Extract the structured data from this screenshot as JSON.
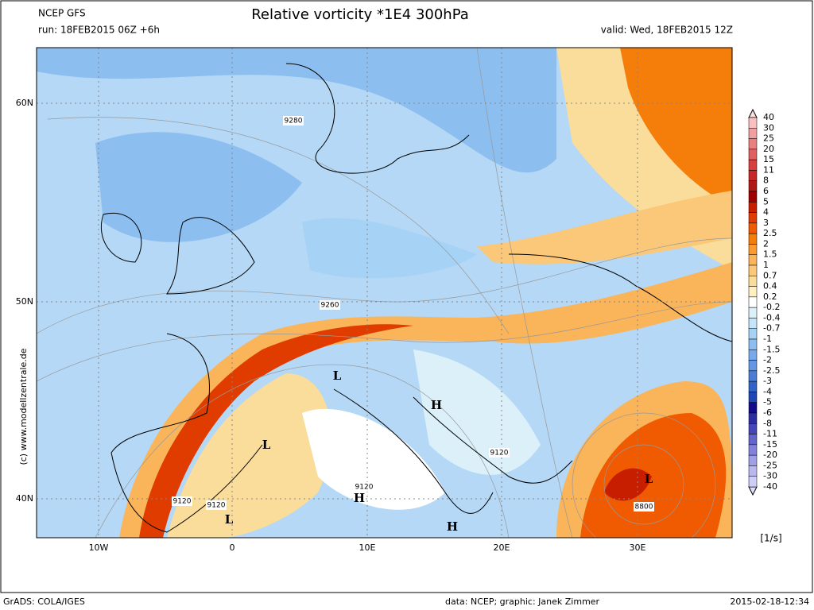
{
  "header": {
    "model": "NCEP GFS",
    "title": "Relative vorticity *1E4 300hPa",
    "run": "run: 18FEB2015 06Z +6h",
    "valid": "valid: Wed, 18FEB2015 12Z"
  },
  "map": {
    "lat_labels": [
      "60N",
      "50N",
      "40N"
    ],
    "lon_labels": [
      "10W",
      "0",
      "10E",
      "20E",
      "30E"
    ],
    "contour_labels": [
      "9280",
      "9260",
      "9120",
      "9120",
      "9120",
      "9120",
      "8800"
    ],
    "pressure_centers": [
      "L",
      "H",
      "L",
      "H",
      "L",
      "H",
      "L"
    ],
    "watermark": "(c) www.modellzentrale.de"
  },
  "colorbar": {
    "levels": [
      "40",
      "30",
      "25",
      "20",
      "15",
      "11",
      "8",
      "6",
      "5",
      "4",
      "3",
      "2.5",
      "2",
      "1.5",
      "1",
      "0.7",
      "0.4",
      "0.2",
      "-0.2",
      "-0.4",
      "-0.7",
      "-1",
      "-1.5",
      "-2",
      "-2.5",
      "-3",
      "-4",
      "-5",
      "-6",
      "-8",
      "-11",
      "-15",
      "-20",
      "-25",
      "-30",
      "-40"
    ],
    "colors": [
      "#f8c0c0",
      "#f0a0a0",
      "#e88080",
      "#e06060",
      "#d84040",
      "#c82828",
      "#b01818",
      "#a00000",
      "#c81e00",
      "#e03c00",
      "#f05a00",
      "#f57d0a",
      "#fa9b32",
      "#fab45a",
      "#fac878",
      "#fadc9b",
      "#fff0c0",
      "#ffffff",
      "#dcf0fa",
      "#c3e6fa",
      "#a5d2f5",
      "#8cbef0",
      "#78aaeb",
      "#6496e6",
      "#4b7dd7",
      "#3264c8",
      "#1e46b4",
      "#140a8c",
      "#2d2da0",
      "#4646b9",
      "#6464cd",
      "#8282dc",
      "#a0a0e6",
      "#b9b9f0",
      "#cdcdf5"
    ],
    "unit": "[1/s]"
  },
  "footer": {
    "software": "GrADS: COLA/IGES",
    "credits": "data: NCEP; graphic: Janek Zimmer",
    "timestamp": "2015-02-18-12:34"
  }
}
